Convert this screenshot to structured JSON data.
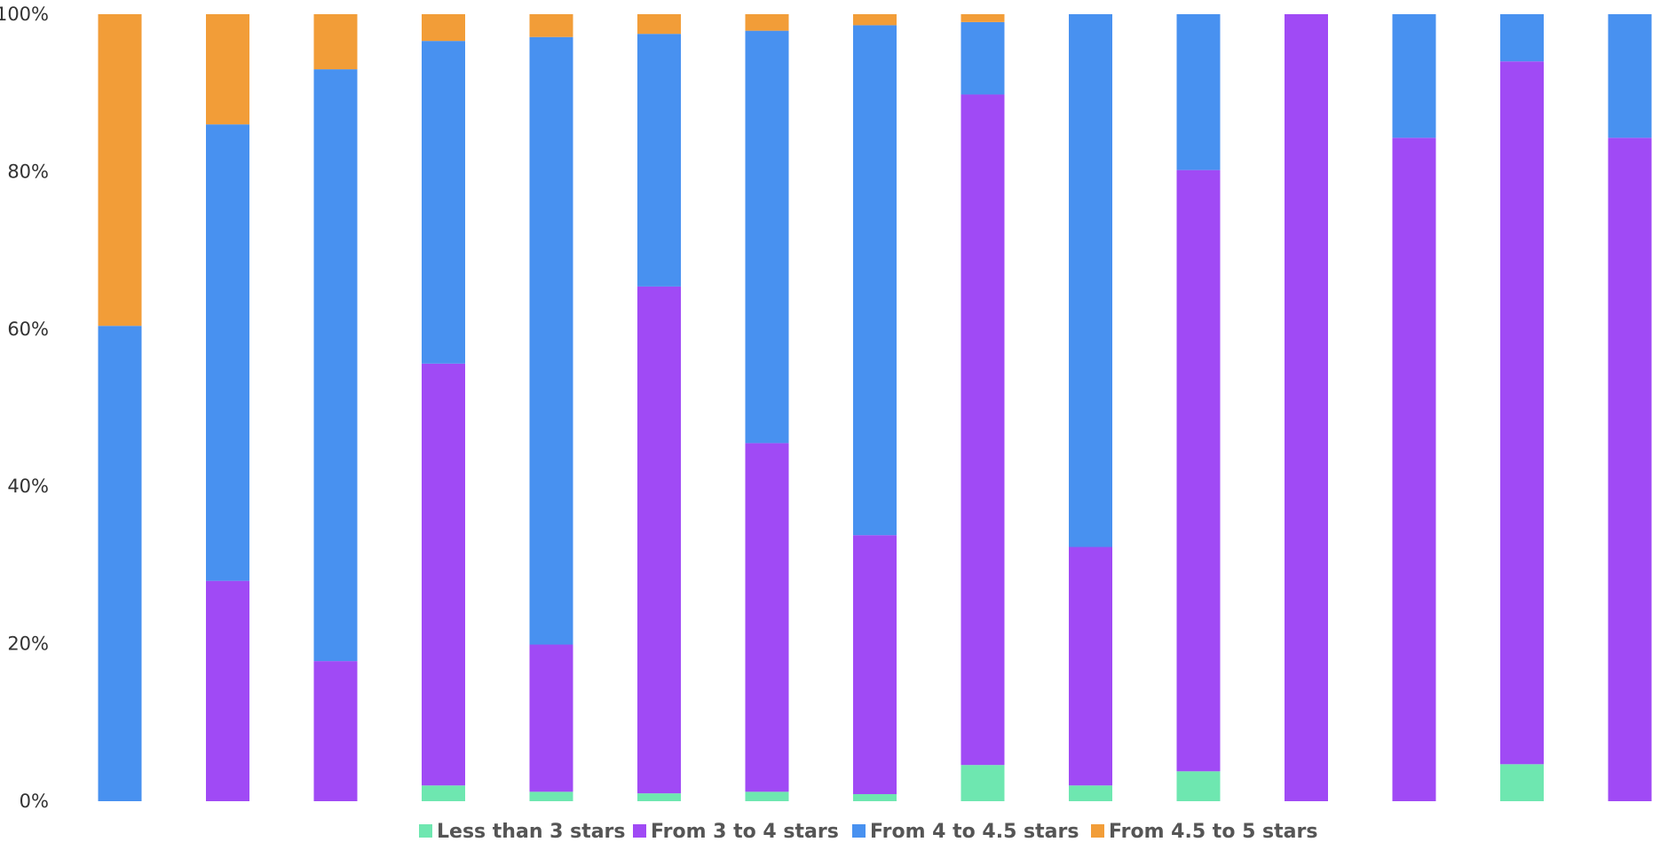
{
  "chart_data": {
    "type": "bar",
    "stacked": true,
    "normalized": true,
    "categories": [
      "",
      "",
      "",
      "",
      "",
      "",
      "",
      "",
      "",
      "",
      "",
      "",
      "",
      "",
      ""
    ],
    "ylim": [
      0,
      100
    ],
    "yticks": [
      "0%",
      "20%",
      "40%",
      "60%",
      "80%",
      "100%"
    ],
    "grid": false,
    "legend_position": "bottom",
    "series": [
      {
        "name": "Less than 3 stars",
        "color": "#6ee7b0",
        "values": [
          0,
          0,
          0,
          2.0,
          1.2,
          1.0,
          1.2,
          0.9,
          4.6,
          2.0,
          3.8,
          0,
          0,
          4.7,
          0
        ]
      },
      {
        "name": "From 3 to 4 stars",
        "color": "#a04af5",
        "values": [
          0,
          28.0,
          17.8,
          53.6,
          18.7,
          64.4,
          44.3,
          32.9,
          85.2,
          30.3,
          76.4,
          100,
          84.3,
          89.3,
          84.3
        ]
      },
      {
        "name": "From 4 to 4.5 stars",
        "color": "#4891f0",
        "values": [
          60.4,
          58.0,
          75.2,
          41.0,
          77.2,
          32.1,
          52.4,
          64.8,
          9.2,
          67.7,
          19.8,
          0,
          15.7,
          6.0,
          15.7
        ]
      },
      {
        "name": "From 4.5 to 5 stars",
        "color": "#f29d38",
        "values": [
          39.6,
          14.0,
          7.0,
          3.4,
          2.9,
          2.5,
          2.1,
          1.4,
          1.0,
          0,
          0,
          0,
          0,
          0,
          0
        ]
      }
    ]
  }
}
